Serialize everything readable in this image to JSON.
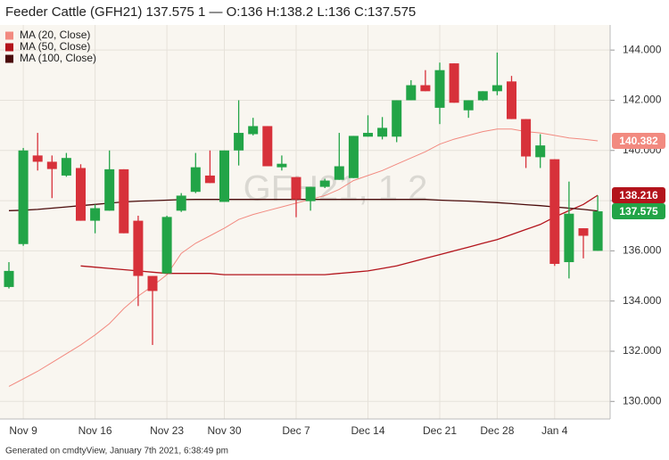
{
  "chart_data": {
    "type": "candlestick",
    "title": "Feeder Cattle (GFH21) 137.575 1 — O:136 H:138.2 L:136 C:137.575",
    "watermark": "GFH21, 1 2",
    "footer": "Generated on cmdtyView, January 7th 2021, 6:38:49 pm",
    "categories": [
      null,
      "Nov 9",
      null,
      null,
      null,
      null,
      "Nov 16",
      null,
      null,
      null,
      null,
      "Nov 23",
      null,
      null,
      null,
      "Nov 30",
      null,
      null,
      null,
      null,
      "Dec 7",
      null,
      null,
      null,
      null,
      "Dec 14",
      null,
      null,
      null,
      null,
      "Dec 21",
      null,
      null,
      null,
      "Dec 28",
      null,
      null,
      null,
      "Jan 4",
      null,
      null,
      null
    ],
    "open": [
      134.56,
      136.27,
      139.8,
      139.55,
      139.0,
      139.3,
      137.2,
      137.6,
      139.25,
      137.2,
      135.0,
      135.1,
      137.6,
      138.35,
      139.0,
      137.95,
      140.0,
      140.65,
      140.97,
      139.33,
      138.94,
      137.98,
      138.55,
      138.83,
      138.9,
      140.55,
      140.55,
      140.55,
      142.0,
      142.6,
      141.7,
      143.47,
      141.6,
      142.0,
      142.36,
      142.75,
      141.25,
      139.73,
      139.65,
      135.55,
      136.9,
      136
    ],
    "high": [
      135.55,
      140.1,
      140.7,
      139.8,
      139.9,
      139.45,
      137.85,
      140.0,
      139.25,
      137.4,
      135.0,
      137.4,
      138.3,
      139.9,
      140.0,
      140.0,
      142.0,
      141.3,
      140.97,
      139.8,
      138.94,
      138.55,
      138.87,
      140.7,
      140.58,
      141.4,
      141.33,
      142.0,
      142.8,
      143.2,
      143.5,
      143.47,
      142.0,
      142.36,
      143.9,
      142.97,
      141.25,
      140.65,
      139.65,
      138.76,
      136.9,
      138.2
    ],
    "low": [
      134.5,
      136.2,
      139.2,
      138.1,
      138.95,
      137.2,
      136.7,
      137.6,
      136.7,
      133.8,
      132.25,
      135.1,
      137.55,
      138.3,
      138.7,
      137.95,
      139.4,
      140.6,
      139.37,
      139.2,
      137.34,
      137.6,
      138.5,
      138.83,
      138.9,
      140.55,
      140.44,
      140.33,
      142.0,
      142.36,
      141.05,
      141.9,
      141.3,
      141.97,
      142.2,
      141.25,
      139.3,
      139.3,
      135.4,
      134.9,
      135.7,
      136
    ],
    "close": [
      135.2,
      140.0,
      139.55,
      139.26,
      139.7,
      137.2,
      137.7,
      139.25,
      136.7,
      135.0,
      134.4,
      137.35,
      138.2,
      139.33,
      138.7,
      140.0,
      140.7,
      140.97,
      139.37,
      139.47,
      138.05,
      138.55,
      138.8,
      139.37,
      140.58,
      140.7,
      140.9,
      142.0,
      142.6,
      142.36,
      143.2,
      141.9,
      142.0,
      142.36,
      142.6,
      141.25,
      139.76,
      140.2,
      135.48,
      137.48,
      136.6,
      137.575
    ],
    "up_color": "#22a447",
    "down_color": "#d7313a",
    "series": [
      {
        "name": "MA (20, Close)",
        "color": "#f28a80",
        "values": [
          130.6,
          130.9,
          131.2,
          131.55,
          131.9,
          132.25,
          132.65,
          133.1,
          133.7,
          134.2,
          134.6,
          135.05,
          135.9,
          136.3,
          136.6,
          136.9,
          137.25,
          137.45,
          137.6,
          137.75,
          137.9,
          138.05,
          138.2,
          138.45,
          138.8,
          139.0,
          139.2,
          139.45,
          139.7,
          139.95,
          140.25,
          140.45,
          140.6,
          140.75,
          140.85,
          140.85,
          140.75,
          140.7,
          140.6,
          140.5,
          140.45,
          140.382
        ]
      },
      {
        "name": "MA (50, Close)",
        "color": "#b3141c",
        "values": [
          null,
          null,
          null,
          null,
          null,
          135.4,
          135.35,
          135.3,
          135.25,
          135.2,
          135.15,
          135.1,
          135.1,
          135.1,
          135.1,
          135.05,
          135.05,
          135.05,
          135.05,
          135.05,
          135.05,
          135.05,
          135.05,
          135.1,
          135.15,
          135.2,
          135.3,
          135.4,
          135.55,
          135.7,
          135.85,
          136.0,
          136.15,
          136.3,
          136.45,
          136.65,
          136.85,
          137.05,
          137.35,
          137.6,
          137.85,
          138.216
        ]
      },
      {
        "name": "MA (100, Close)",
        "color": "#4a0a0a",
        "values": [
          137.6,
          137.62,
          137.65,
          137.7,
          137.75,
          137.8,
          137.85,
          137.9,
          137.95,
          137.98,
          138.0,
          138.02,
          138.04,
          138.05,
          138.05,
          138.05,
          138.05,
          138.05,
          138.05,
          138.05,
          138.05,
          138.05,
          138.05,
          138.05,
          138.05,
          138.05,
          138.05,
          138.05,
          138.05,
          138.05,
          138.02,
          138.0,
          137.98,
          137.95,
          137.92,
          137.88,
          137.84,
          137.8,
          137.75,
          137.7,
          137.65,
          137.59
        ]
      }
    ],
    "ylim": [
      129.3,
      145
    ],
    "yticks": [
      {
        "value": 130,
        "label": "130.000"
      },
      {
        "value": 132,
        "label": "132.000"
      },
      {
        "value": 134,
        "label": "134.000"
      },
      {
        "value": 136,
        "label": "136.000"
      },
      {
        "value": 138,
        "label": "138.000"
      },
      {
        "value": 140,
        "label": "140.000"
      },
      {
        "value": 142,
        "label": "142.000"
      },
      {
        "value": 144,
        "label": "144.000"
      }
    ],
    "grid": true
  }
}
